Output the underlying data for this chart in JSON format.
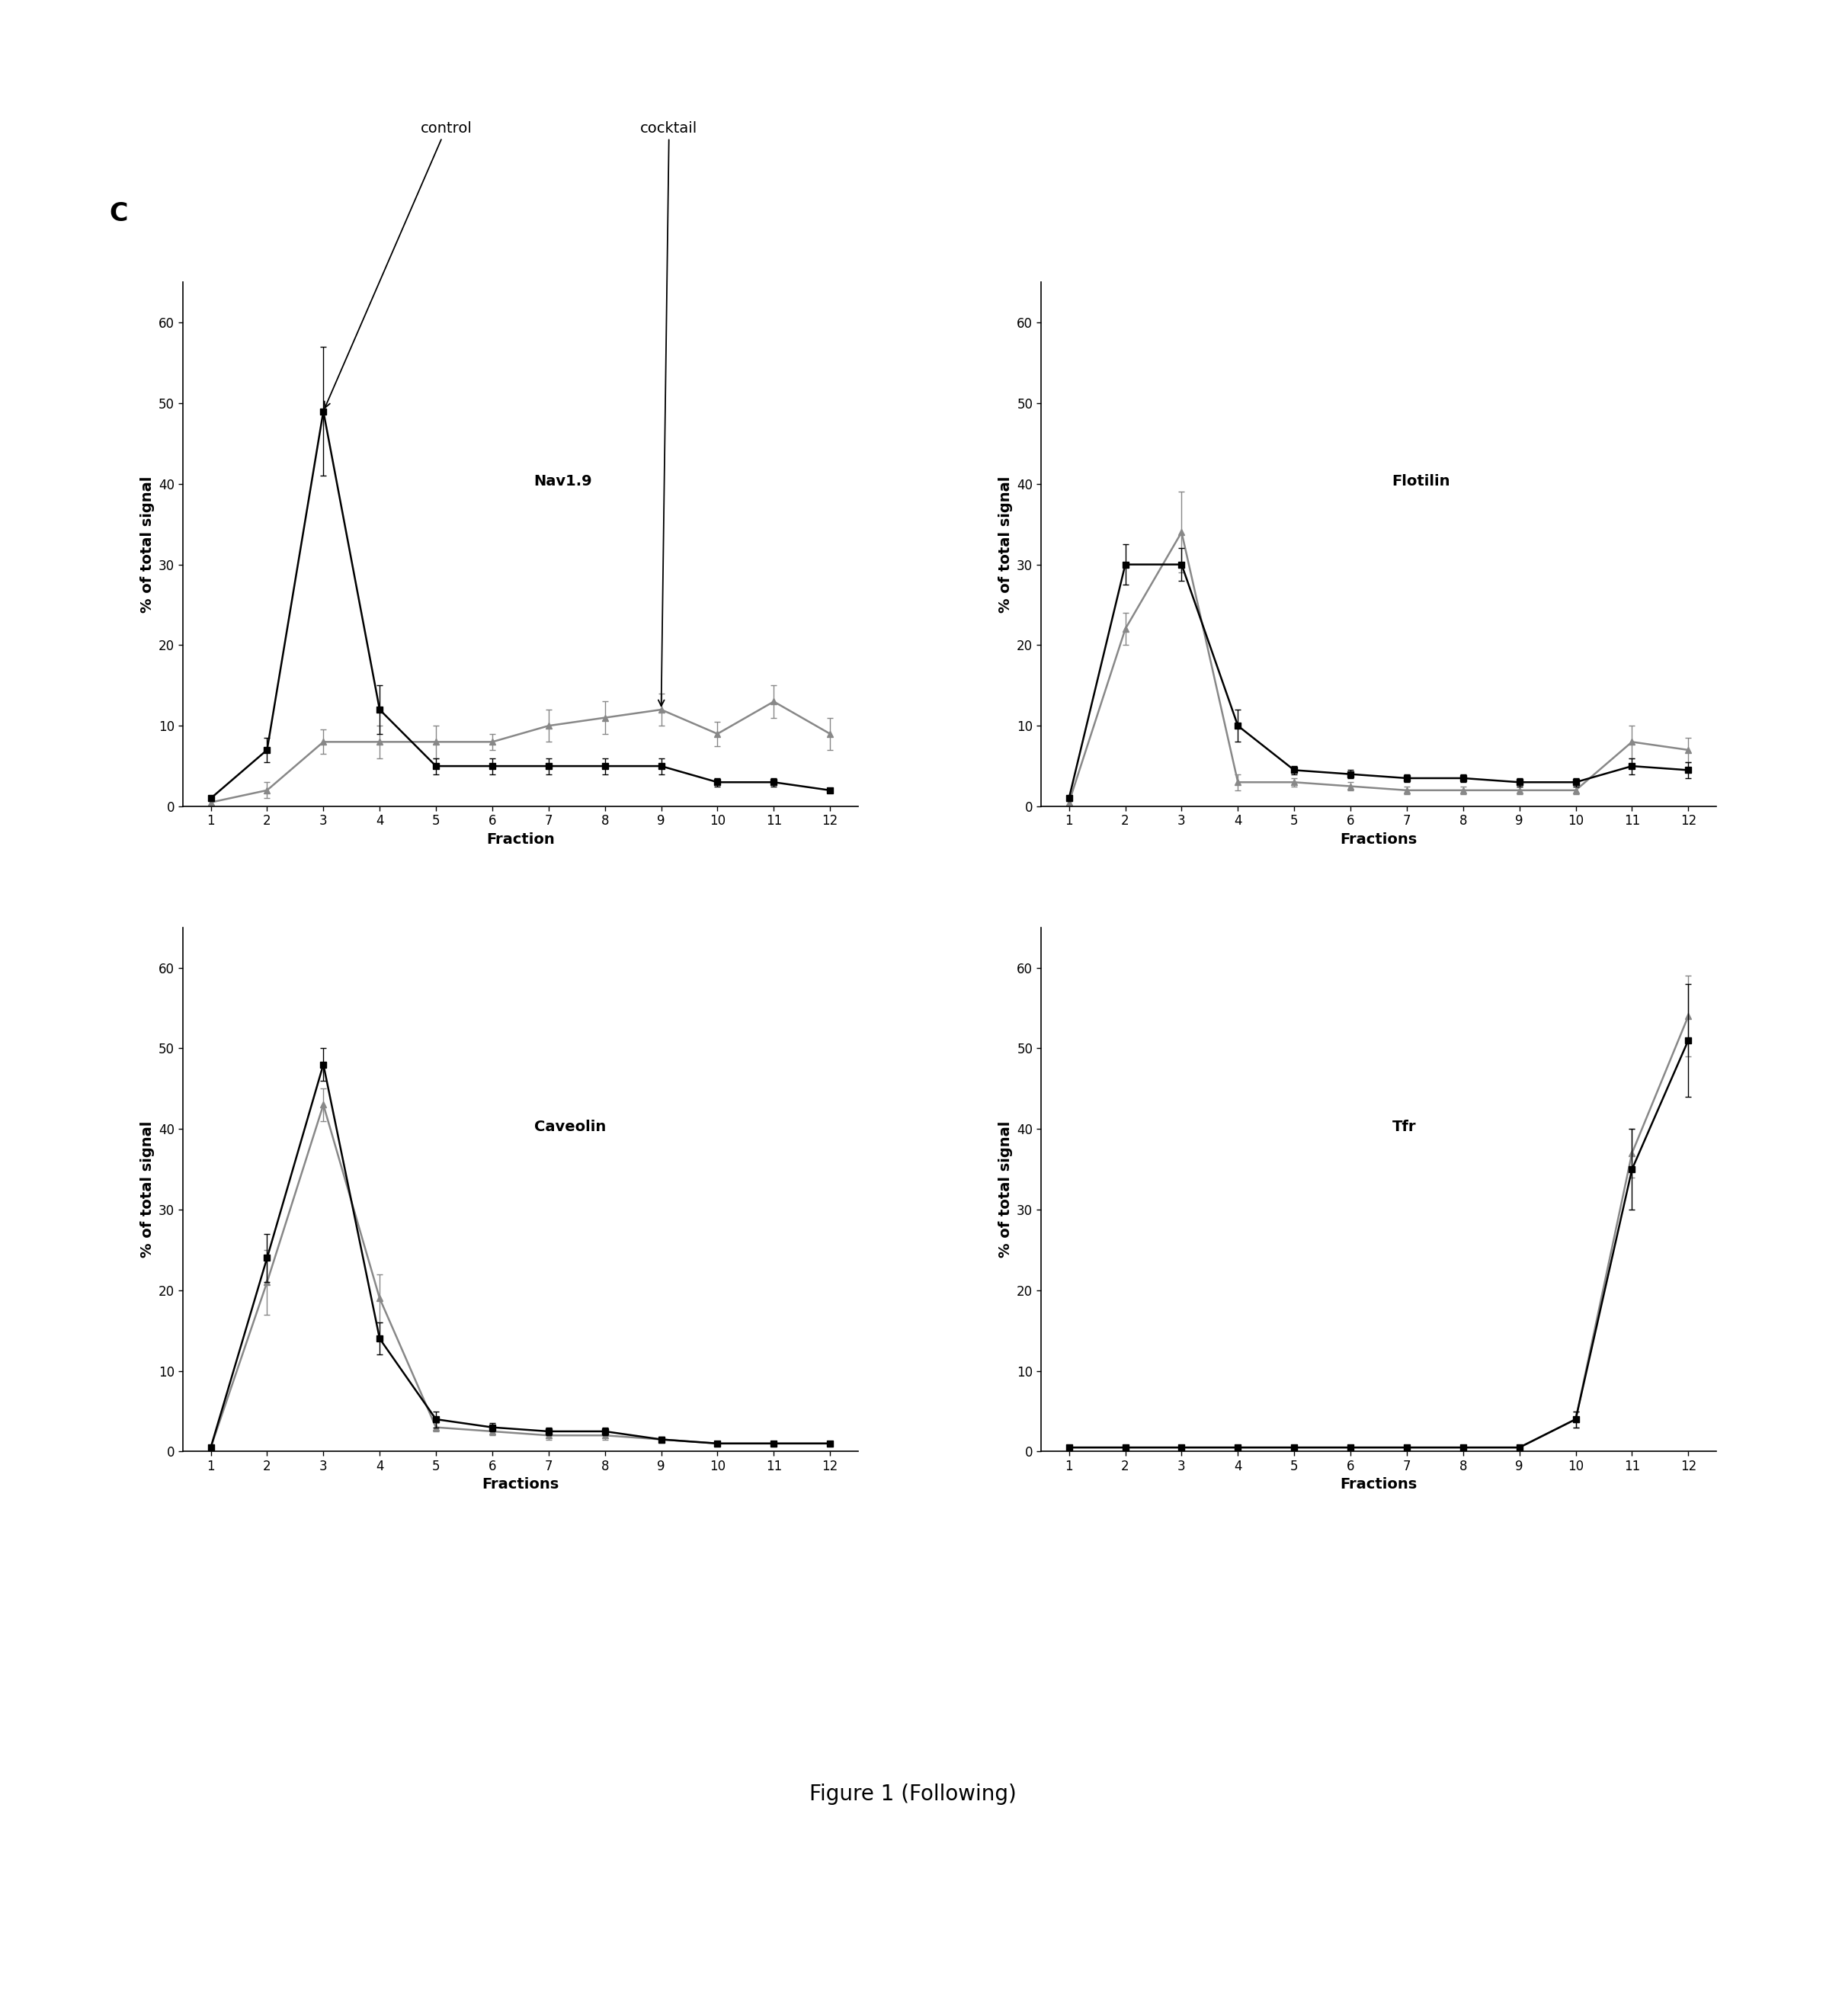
{
  "fractions": [
    1,
    2,
    3,
    4,
    5,
    6,
    7,
    8,
    9,
    10,
    11,
    12
  ],
  "nav19_black": [
    1,
    7,
    49,
    12,
    5,
    5,
    5,
    5,
    5,
    3,
    3,
    2
  ],
  "nav19_black_err": [
    0.3,
    1.5,
    8,
    3,
    1,
    1,
    1,
    1,
    1,
    0.5,
    0.5,
    0.3
  ],
  "nav19_gray": [
    0.5,
    2,
    8,
    8,
    8,
    8,
    10,
    11,
    12,
    9,
    13,
    9
  ],
  "nav19_gray_err": [
    0.3,
    1,
    1.5,
    2,
    2,
    1,
    2,
    2,
    2,
    1.5,
    2,
    2
  ],
  "flotilin_black": [
    1,
    30,
    30,
    10,
    4.5,
    4,
    3.5,
    3.5,
    3,
    3,
    5,
    4.5
  ],
  "flotilin_black_err": [
    0.3,
    2.5,
    2,
    2,
    0.5,
    0.5,
    0.5,
    0.5,
    0.5,
    0.5,
    1,
    1
  ],
  "flotilin_gray": [
    0.5,
    22,
    34,
    3,
    3,
    2.5,
    2,
    2,
    2,
    2,
    8,
    7
  ],
  "flotilin_gray_err": [
    0.3,
    2,
    5,
    1,
    0.5,
    0.5,
    0.5,
    0.5,
    0.5,
    0.5,
    2,
    1.5
  ],
  "caveolin_black": [
    0.5,
    24,
    48,
    14,
    4,
    3,
    2.5,
    2.5,
    1.5,
    1,
    1,
    1
  ],
  "caveolin_black_err": [
    0.2,
    3,
    2,
    2,
    1,
    0.5,
    0.5,
    0.5,
    0.3,
    0.2,
    0.2,
    0.2
  ],
  "caveolin_gray": [
    0.5,
    21,
    43,
    19,
    3,
    2.5,
    2,
    2,
    1.5,
    1,
    1,
    1
  ],
  "caveolin_gray_err": [
    0.2,
    4,
    2,
    3,
    0.5,
    0.5,
    0.5,
    0.5,
    0.3,
    0.2,
    0.2,
    0.2
  ],
  "tfr_black": [
    0.5,
    0.5,
    0.5,
    0.5,
    0.5,
    0.5,
    0.5,
    0.5,
    0.5,
    4,
    35,
    51
  ],
  "tfr_black_err": [
    0.2,
    0.2,
    0.2,
    0.2,
    0.2,
    0.2,
    0.2,
    0.2,
    0.2,
    1,
    5,
    7
  ],
  "tfr_gray": [
    0.5,
    0.5,
    0.5,
    0.5,
    0.5,
    0.5,
    0.5,
    0.5,
    0.5,
    4,
    37,
    54
  ],
  "tfr_gray_err": [
    0.2,
    0.2,
    0.2,
    0.2,
    0.2,
    0.2,
    0.2,
    0.2,
    0.2,
    1,
    3,
    5
  ],
  "ylabel": "% of total signal",
  "xlabel_fraction": "Fraction",
  "xlabel_fractions": "Fractions",
  "ylim": [
    0,
    65
  ],
  "yticks": [
    0,
    10,
    20,
    30,
    40,
    50,
    60
  ],
  "panel_label": "C",
  "figure_caption": "Figure 1 (Following)",
  "black_color": "#000000",
  "gray_color": "#888888",
  "label_fontsize": 14,
  "tick_fontsize": 12,
  "panel_fontsize": 24,
  "caption_fontsize": 20,
  "inner_label_fontsize": 14
}
